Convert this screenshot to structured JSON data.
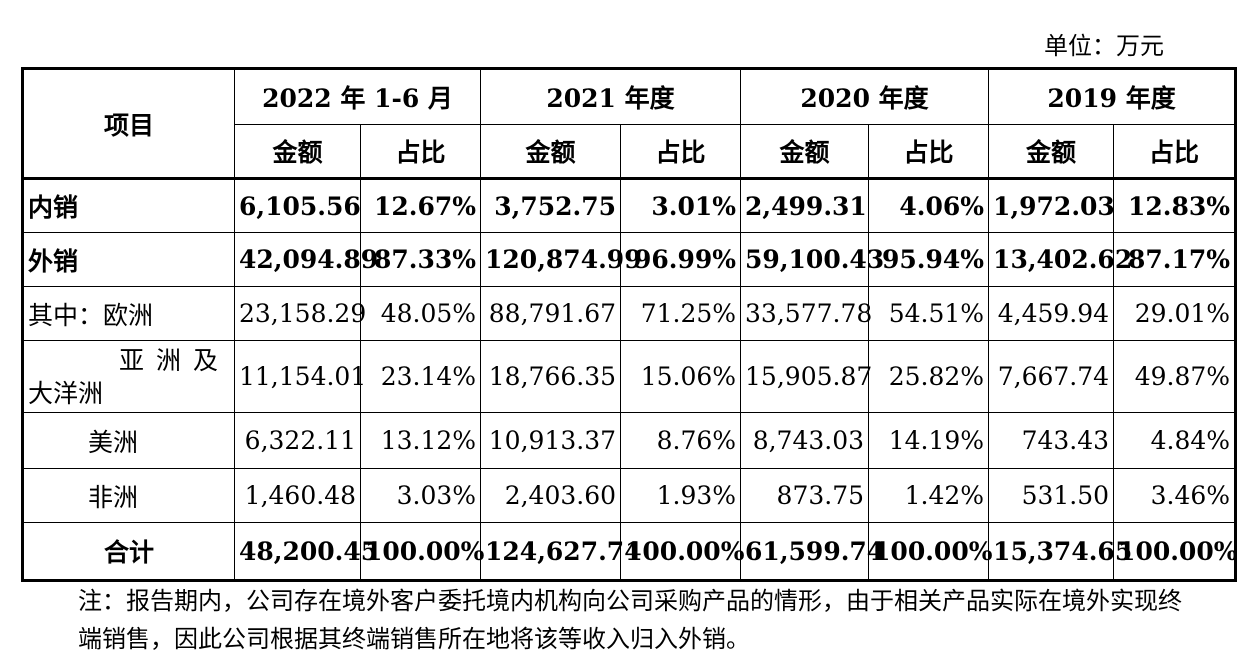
{
  "unit_label": "单位：万元",
  "header": {
    "item": "项目",
    "periods": [
      "2022 年 1-6 月",
      "2021 年度",
      "2020 年度",
      "2019 年度"
    ],
    "amount": "金额",
    "ratio": "占比"
  },
  "rows": [
    {
      "label": "内销",
      "bold": true,
      "values": [
        "6,105.56",
        "12.67%",
        "3,752.75",
        "3.01%",
        "2,499.31",
        "4.06%",
        "1,972.03",
        "12.83%"
      ]
    },
    {
      "label": "外销",
      "bold": true,
      "values": [
        "42,094.89",
        "87.33%",
        "120,874.99",
        "96.99%",
        "59,100.43",
        "95.94%",
        "13,402.62",
        "87.17%"
      ]
    },
    {
      "label": "其中：欧洲",
      "bold": false,
      "values": [
        "23,158.29",
        "48.05%",
        "88,791.67",
        "71.25%",
        "33,577.78",
        "54.51%",
        "4,459.94",
        "29.01%"
      ]
    },
    {
      "label_line1": "亚洲及",
      "label_line2": "大洋洲",
      "bold": false,
      "values": [
        "11,154.01",
        "23.14%",
        "18,766.35",
        "15.06%",
        "15,905.87",
        "25.82%",
        "7,667.74",
        "49.87%"
      ]
    },
    {
      "label": "美洲",
      "bold": false,
      "values": [
        "6,322.11",
        "13.12%",
        "10,913.37",
        "8.76%",
        "8,743.03",
        "14.19%",
        "743.43",
        "4.84%"
      ]
    },
    {
      "label": "非洲",
      "bold": false,
      "values": [
        "1,460.48",
        "3.03%",
        "2,403.60",
        "1.93%",
        "873.75",
        "1.42%",
        "531.50",
        "3.46%"
      ]
    },
    {
      "label": "合计",
      "bold": true,
      "values": [
        "48,200.45",
        "100.00%",
        "124,627.74",
        "100.00%",
        "61,599.74",
        "100.00%",
        "15,374.65",
        "100.00%"
      ]
    }
  ],
  "note": "注：报告期内，公司存在境外客户委托境内机构向公司采购产品的情形，由于相关产品实际在境外实现终端销售，因此公司根据其终端销售所在地将该等收入归入外销。"
}
